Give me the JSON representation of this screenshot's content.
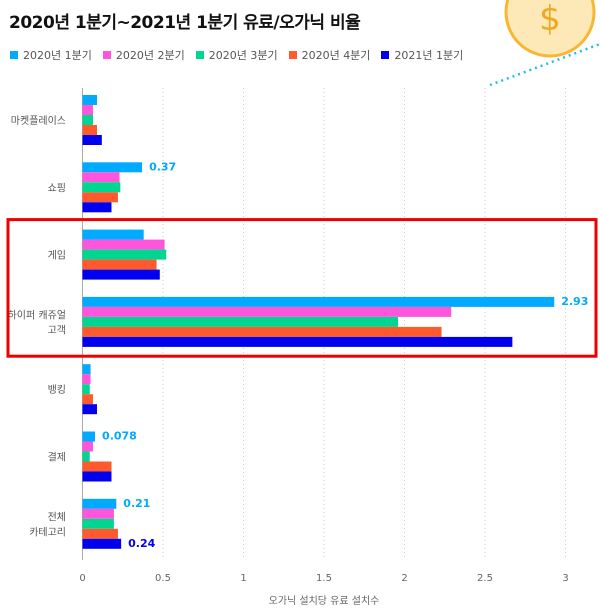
{
  "chart_data": {
    "type": "bar",
    "orientation": "horizontal",
    "title": "2020년 1분기~2021년 1분기 유료/오가닉 비율",
    "xlabel": "오가닉 설치당 유료 설치수",
    "ylabel": "",
    "xlim": [
      0,
      3.1
    ],
    "xticks": [
      "0",
      "0.5",
      "1",
      "1.5",
      "2",
      "2.5",
      "3"
    ],
    "grid": "vertical dotted",
    "legend": "top-left",
    "categories": [
      "마켓플레이스",
      "쇼핑",
      "게임",
      "하이퍼 캐쥬얼 고객",
      "뱅킹",
      "결제",
      "전체 카테고리"
    ],
    "category_lines": [
      [
        "마켓플레이스"
      ],
      [
        "쇼핑"
      ],
      [
        "게임"
      ],
      [
        "하이퍼 캐쥬얼",
        "고객"
      ],
      [
        "뱅킹"
      ],
      [
        "결제"
      ],
      [
        "전체",
        "카테고리"
      ]
    ],
    "series": [
      {
        "name": "2020년 1분기",
        "color": "#00aaff",
        "values": [
          0.09,
          0.37,
          0.38,
          2.93,
          0.05,
          0.078,
          0.21
        ]
      },
      {
        "name": "2020년 2분기",
        "color": "#ff55dd",
        "values": [
          0.065,
          0.23,
          0.51,
          2.29,
          0.05,
          0.065,
          0.195
        ]
      },
      {
        "name": "2020년 3분기",
        "color": "#00d68f",
        "values": [
          0.065,
          0.235,
          0.52,
          1.96,
          0.045,
          0.045,
          0.195
        ]
      },
      {
        "name": "2020년 4분기",
        "color": "#ff5a2e",
        "values": [
          0.09,
          0.22,
          0.46,
          2.23,
          0.065,
          0.18,
          0.22
        ]
      },
      {
        "name": "2021년 1분기",
        "color": "#0000ee",
        "values": [
          0.12,
          0.18,
          0.48,
          2.67,
          0.09,
          0.18,
          0.24
        ]
      }
    ],
    "data_labels": [
      {
        "series": 0,
        "category": 1,
        "text": "0.37",
        "color": "#00aaff"
      },
      {
        "series": 0,
        "category": 3,
        "text": "2.93",
        "color": "#00aaff"
      },
      {
        "series": 0,
        "category": 5,
        "text": "0.078",
        "color": "#00aaff"
      },
      {
        "series": 0,
        "category": 6,
        "text": "0.21",
        "color": "#00aaff"
      },
      {
        "series": 4,
        "category": 6,
        "text": "0.24",
        "color": "#0000ee"
      }
    ],
    "highlight": {
      "categories": [
        "게임",
        "하이퍼 캐쥬얼 고객"
      ],
      "color": "#ee0000"
    }
  }
}
